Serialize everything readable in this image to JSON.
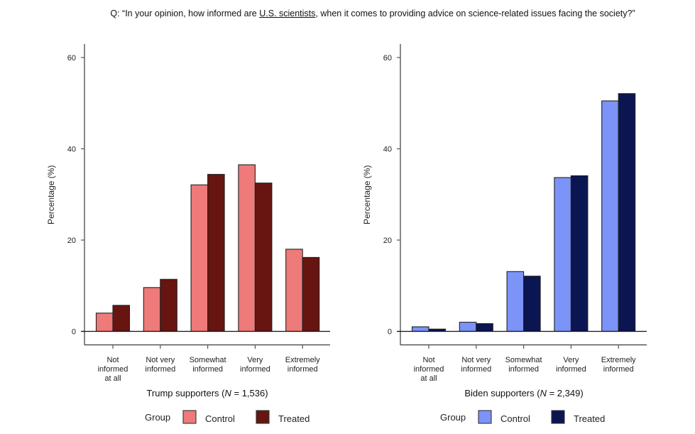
{
  "question": {
    "prefix": "Q: “In your opinion, how informed are ",
    "underlined": "U.S. scientists",
    "suffix": ", when it comes to providing advice on science-related issues facing the society?”"
  },
  "chart_data": [
    {
      "type": "bar",
      "title": "Trump supporters",
      "subtitle_prefix": "Trump supporters (",
      "subtitle_n_symbol": "N",
      "subtitle_suffix": " = 1,536)",
      "xlabel": "",
      "ylabel": "Percentage (%)",
      "ylim": [
        0,
        60
      ],
      "yticks": [
        0,
        20,
        40,
        60
      ],
      "grid": false,
      "categories": [
        [
          "Not",
          "informed",
          "at all"
        ],
        [
          "Not very",
          "informed"
        ],
        [
          "Somewhat",
          "informed"
        ],
        [
          "Very",
          "informed"
        ],
        [
          "Extremely",
          "informed"
        ]
      ],
      "series": [
        {
          "name": "Control",
          "color": "#EE7A7A",
          "values": [
            4.0,
            9.6,
            32.1,
            36.5,
            18.0
          ]
        },
        {
          "name": "Treated",
          "color": "#661511",
          "values": [
            5.7,
            11.4,
            34.4,
            32.5,
            16.2
          ]
        }
      ],
      "legend": {
        "title": "Group",
        "placement": "bottom",
        "items": [
          "Control",
          "Treated"
        ]
      }
    },
    {
      "type": "bar",
      "title": "Biden supporters",
      "subtitle_prefix": "Biden supporters (",
      "subtitle_n_symbol": "N",
      "subtitle_suffix": " = 2,349)",
      "xlabel": "",
      "ylabel": "Percentage (%)",
      "ylim": [
        0,
        60
      ],
      "yticks": [
        0,
        20,
        40,
        60
      ],
      "grid": false,
      "categories": [
        [
          "Not",
          "informed",
          "at all"
        ],
        [
          "Not very",
          "informed"
        ],
        [
          "Somewhat",
          "informed"
        ],
        [
          "Very",
          "informed"
        ],
        [
          "Extremely",
          "informed"
        ]
      ],
      "series": [
        {
          "name": "Control",
          "color": "#7C93F7",
          "values": [
            1.0,
            2.0,
            13.1,
            33.7,
            50.5
          ]
        },
        {
          "name": "Treated",
          "color": "#0B1551",
          "values": [
            0.5,
            1.7,
            12.1,
            34.1,
            52.1
          ]
        }
      ],
      "legend": {
        "title": "Group",
        "placement": "bottom",
        "items": [
          "Control",
          "Treated"
        ]
      }
    }
  ]
}
